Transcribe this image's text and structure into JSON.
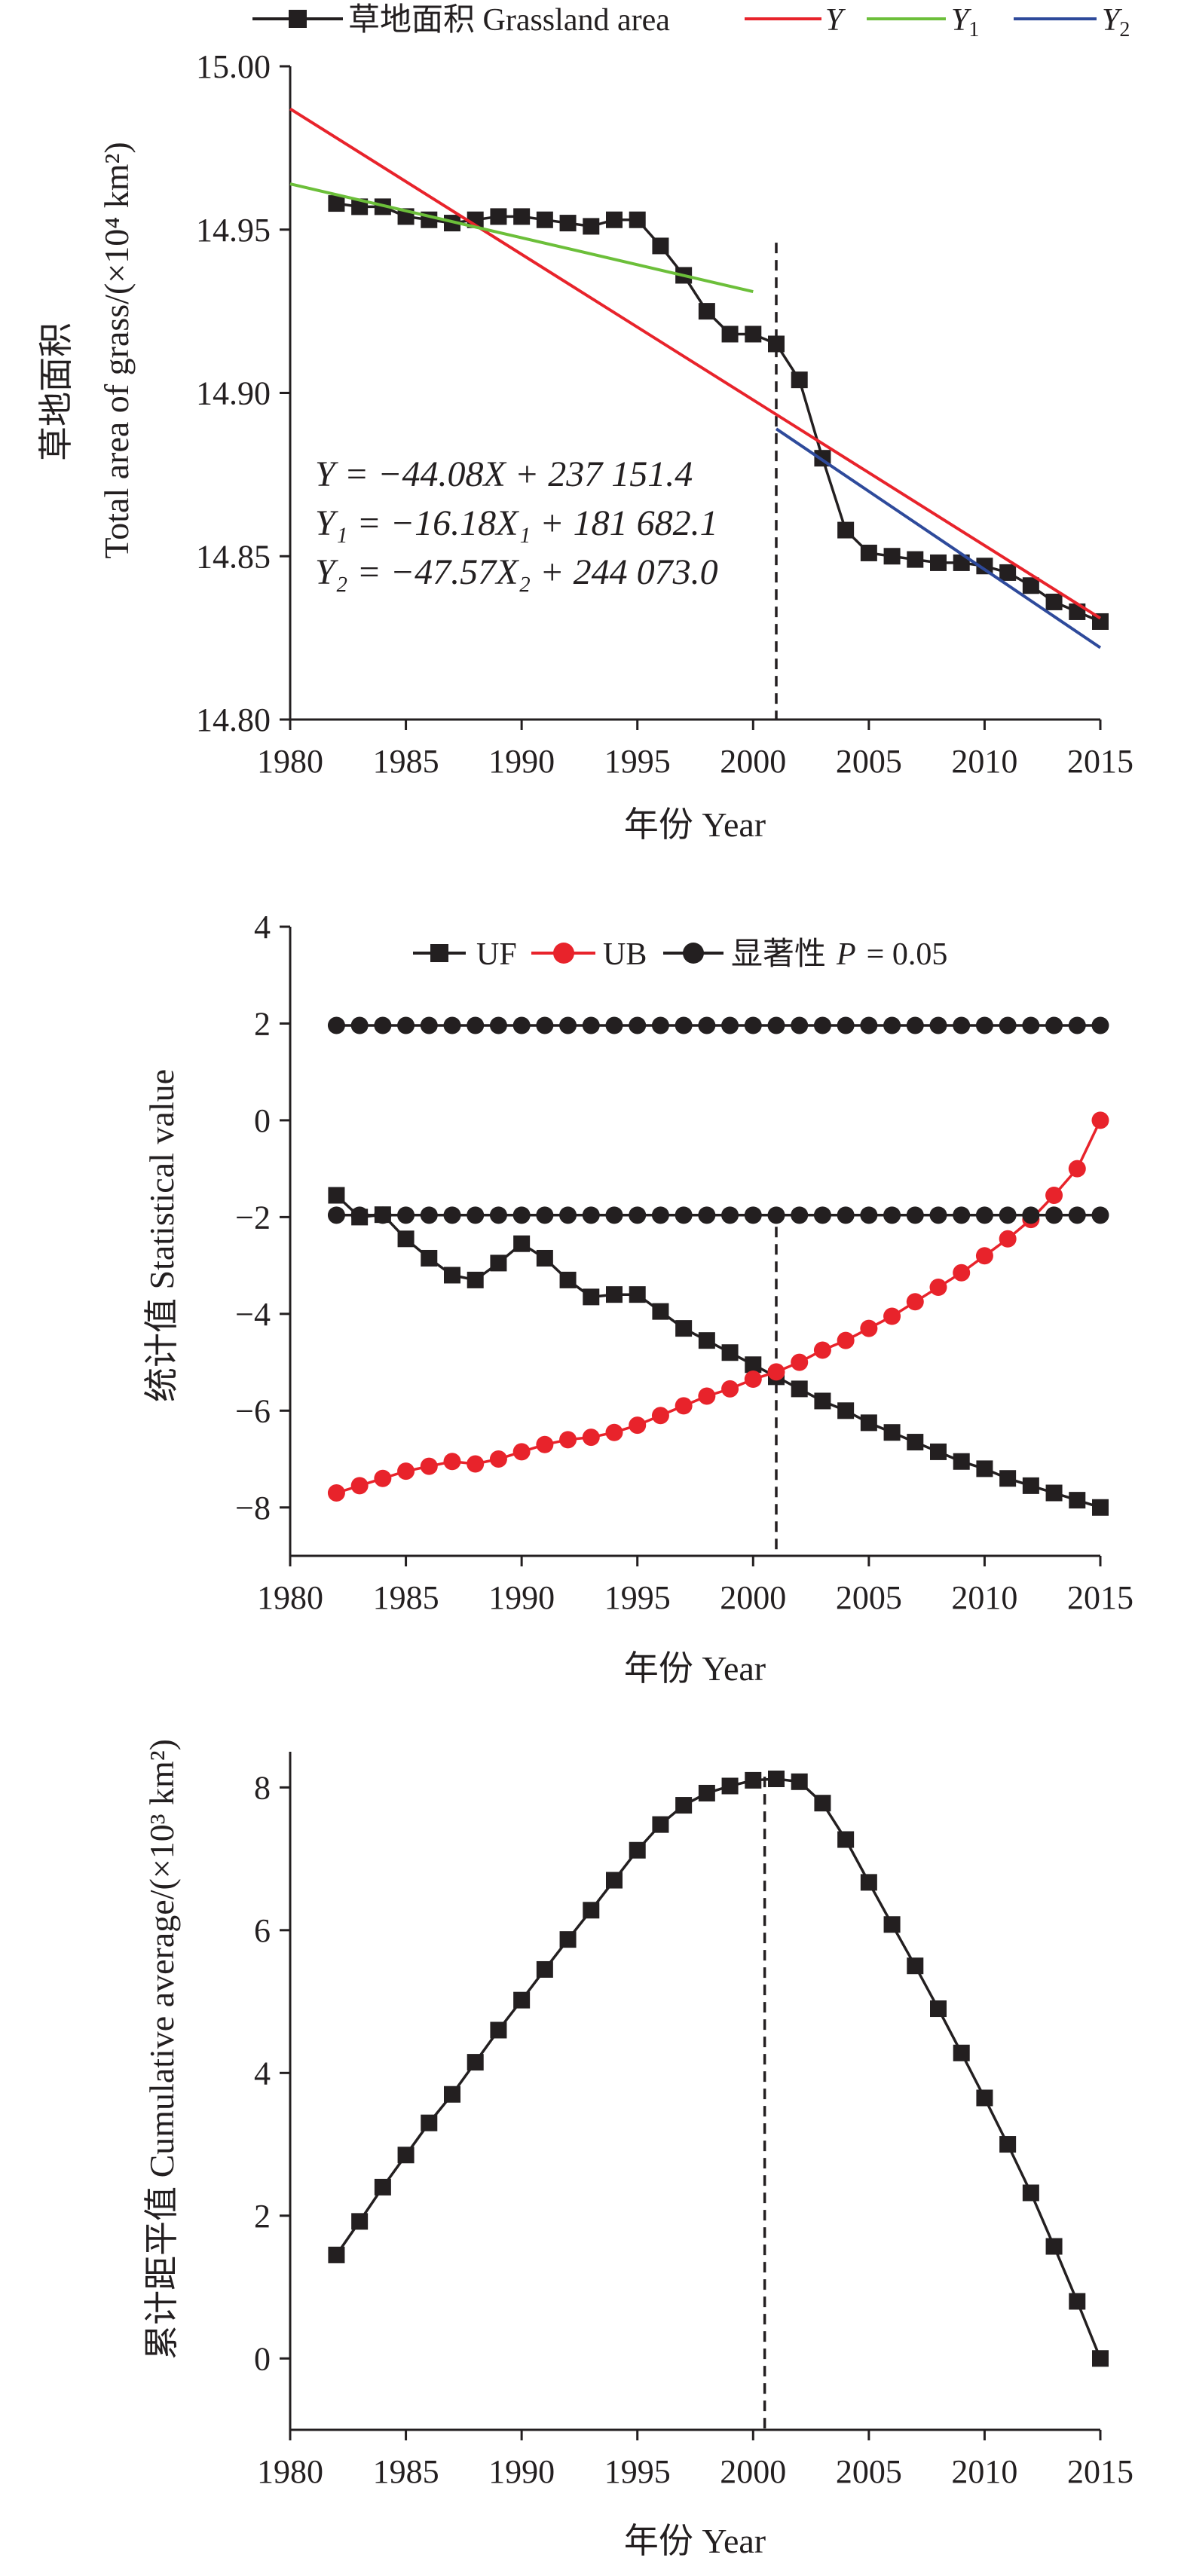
{
  "colors": {
    "black": "#231f20",
    "red": "#e8232b",
    "green": "#6cbf3a",
    "blue": "#2e4a9b"
  },
  "chart_data": [
    {
      "type": "line",
      "ylabel_cn": "草地面积",
      "ylabel_en": "Total area of grass/(×10⁴ km²)",
      "xlabel": "年份 Year",
      "xlim": [
        1980,
        2015
      ],
      "ylim": [
        14.8,
        15.0
      ],
      "xticks": [
        "1980",
        "1985",
        "1990",
        "1995",
        "2000",
        "2005",
        "2010",
        "2015"
      ],
      "yticks": [
        "14.80",
        "14.85",
        "14.90",
        "14.95",
        "15.00"
      ],
      "change_point": 2001,
      "legend": {
        "grass": "草地面积 Grassland area",
        "y": "Y",
        "y1": "Y",
        "y1_sub": "1",
        "y2": "Y",
        "y2_sub": "2"
      },
      "equations": {
        "eq_y": "Y = −44.08X + 237 151.4",
        "eq_y1": "Y₁ = −16.18X₁ + 181 682.1",
        "eq_y2": "Y₂ = −47.57X₂ + 244 073.0"
      },
      "series": [
        {
          "name": "草地面积 Grassland area",
          "color": "#231f20",
          "marker": "square",
          "x": [
            1982,
            1983,
            1984,
            1985,
            1986,
            1987,
            1988,
            1989,
            1990,
            1991,
            1992,
            1993,
            1994,
            1995,
            1996,
            1997,
            1998,
            1999,
            2000,
            2001,
            2002,
            2003,
            2004,
            2005,
            2006,
            2007,
            2008,
            2009,
            2010,
            2011,
            2012,
            2013,
            2014,
            2015
          ],
          "values": [
            14.958,
            14.957,
            14.957,
            14.954,
            14.953,
            14.952,
            14.953,
            14.954,
            14.954,
            14.953,
            14.952,
            14.951,
            14.953,
            14.953,
            14.945,
            14.936,
            14.925,
            14.918,
            14.918,
            14.915,
            14.904,
            14.88,
            14.858,
            14.851,
            14.85,
            14.849,
            14.848,
            14.848,
            14.847,
            14.845,
            14.841,
            14.836,
            14.833,
            14.83
          ]
        },
        {
          "name": "Y",
          "color": "#e8232b",
          "x": [
            1980,
            2015
          ],
          "values": [
            14.987,
            14.831
          ]
        },
        {
          "name": "Y1",
          "color": "#6cbf3a",
          "x": [
            1980,
            2000
          ],
          "values": [
            14.964,
            14.931
          ]
        },
        {
          "name": "Y2",
          "color": "#2e4a9b",
          "x": [
            2001,
            2015
          ],
          "values": [
            14.889,
            14.822
          ]
        }
      ]
    },
    {
      "type": "line",
      "ylabel": "统计值 Statistical value",
      "xlabel": "年份 Year",
      "xlim": [
        1980,
        2015
      ],
      "ylim": [
        -9,
        4
      ],
      "xticks": [
        "1980",
        "1985",
        "1990",
        "1995",
        "2000",
        "2005",
        "2010",
        "2015"
      ],
      "yticks": [
        "−8",
        "−6",
        "−4",
        "−2",
        "0",
        "2",
        "4"
      ],
      "change_point": 2001,
      "legend": {
        "uf": "UF",
        "ub": "UB",
        "sig": "显著性",
        "sig_p": "P",
        "sig_val": "= 0.05"
      },
      "series": [
        {
          "name": "UF",
          "color": "#231f20",
          "marker": "square",
          "x": [
            1982,
            1983,
            1984,
            1985,
            1986,
            1987,
            1988,
            1989,
            1990,
            1991,
            1992,
            1993,
            1994,
            1995,
            1996,
            1997,
            1998,
            1999,
            2000,
            2001,
            2002,
            2003,
            2004,
            2005,
            2006,
            2007,
            2008,
            2009,
            2010,
            2011,
            2012,
            2013,
            2014,
            2015
          ],
          "values": [
            -1.55,
            -2.0,
            -1.95,
            -2.45,
            -2.85,
            -3.2,
            -3.3,
            -2.95,
            -2.55,
            -2.85,
            -3.3,
            -3.65,
            -3.6,
            -3.6,
            -3.95,
            -4.3,
            -4.55,
            -4.8,
            -5.05,
            -5.3,
            -5.55,
            -5.8,
            -6.0,
            -6.25,
            -6.45,
            -6.65,
            -6.85,
            -7.05,
            -7.2,
            -7.4,
            -7.55,
            -7.7,
            -7.85,
            -8.0
          ]
        },
        {
          "name": "UB",
          "color": "#e8232b",
          "marker": "circle",
          "x": [
            1982,
            1983,
            1984,
            1985,
            1986,
            1987,
            1988,
            1989,
            1990,
            1991,
            1992,
            1993,
            1994,
            1995,
            1996,
            1997,
            1998,
            1999,
            2000,
            2001,
            2002,
            2003,
            2004,
            2005,
            2006,
            2007,
            2008,
            2009,
            2010,
            2011,
            2012,
            2013,
            2014,
            2015
          ],
          "values": [
            -7.7,
            -7.55,
            -7.4,
            -7.25,
            -7.15,
            -7.05,
            -7.1,
            -7.0,
            -6.85,
            -6.7,
            -6.6,
            -6.55,
            -6.45,
            -6.3,
            -6.1,
            -5.9,
            -5.7,
            -5.55,
            -5.35,
            -5.2,
            -5.0,
            -4.75,
            -4.55,
            -4.3,
            -4.05,
            -3.75,
            -3.45,
            -3.15,
            -2.8,
            -2.45,
            -2.05,
            -1.55,
            -1.0,
            0.0
          ]
        },
        {
          "name": "显著性 P = 0.05 (+)",
          "color": "#231f20",
          "marker": "circle",
          "x": [
            1982,
            1983,
            1984,
            1985,
            1986,
            1987,
            1988,
            1989,
            1990,
            1991,
            1992,
            1993,
            1994,
            1995,
            1996,
            1997,
            1998,
            1999,
            2000,
            2001,
            2002,
            2003,
            2004,
            2005,
            2006,
            2007,
            2008,
            2009,
            2010,
            2011,
            2012,
            2013,
            2014,
            2015
          ],
          "values": [
            1.96,
            1.96,
            1.96,
            1.96,
            1.96,
            1.96,
            1.96,
            1.96,
            1.96,
            1.96,
            1.96,
            1.96,
            1.96,
            1.96,
            1.96,
            1.96,
            1.96,
            1.96,
            1.96,
            1.96,
            1.96,
            1.96,
            1.96,
            1.96,
            1.96,
            1.96,
            1.96,
            1.96,
            1.96,
            1.96,
            1.96,
            1.96,
            1.96,
            1.96
          ]
        },
        {
          "name": "显著性 P = 0.05 (−)",
          "color": "#231f20",
          "marker": "circle",
          "x": [
            1982,
            1983,
            1984,
            1985,
            1986,
            1987,
            1988,
            1989,
            1990,
            1991,
            1992,
            1993,
            1994,
            1995,
            1996,
            1997,
            1998,
            1999,
            2000,
            2001,
            2002,
            2003,
            2004,
            2005,
            2006,
            2007,
            2008,
            2009,
            2010,
            2011,
            2012,
            2013,
            2014,
            2015
          ],
          "values": [
            -1.96,
            -1.96,
            -1.96,
            -1.96,
            -1.96,
            -1.96,
            -1.96,
            -1.96,
            -1.96,
            -1.96,
            -1.96,
            -1.96,
            -1.96,
            -1.96,
            -1.96,
            -1.96,
            -1.96,
            -1.96,
            -1.96,
            -1.96,
            -1.96,
            -1.96,
            -1.96,
            -1.96,
            -1.96,
            -1.96,
            -1.96,
            -1.96,
            -1.96,
            -1.96,
            -1.96,
            -1.96,
            -1.96,
            -1.96
          ]
        }
      ]
    },
    {
      "type": "line",
      "ylabel": "累计距平值 Cumulative average/(×10³ km²)",
      "xlabel": "年份 Year",
      "xlim": [
        1980,
        2015
      ],
      "ylim": [
        -1,
        8.5
      ],
      "xticks": [
        "1980",
        "1985",
        "1990",
        "1995",
        "2000",
        "2005",
        "2010",
        "2015"
      ],
      "yticks": [
        "0",
        "2",
        "4",
        "6",
        "8"
      ],
      "change_point": 2000.5,
      "series": [
        {
          "name": "Cumulative average",
          "color": "#231f20",
          "marker": "square",
          "x": [
            1982,
            1983,
            1984,
            1985,
            1986,
            1987,
            1988,
            1989,
            1990,
            1991,
            1992,
            1993,
            1994,
            1995,
            1996,
            1997,
            1998,
            1999,
            2000,
            2001,
            2002,
            2003,
            2004,
            2005,
            2006,
            2007,
            2008,
            2009,
            2010,
            2011,
            2012,
            2013,
            2014,
            2015
          ],
          "values": [
            1.45,
            1.92,
            2.4,
            2.85,
            3.3,
            3.7,
            4.15,
            4.6,
            5.02,
            5.45,
            5.87,
            6.28,
            6.7,
            7.12,
            7.48,
            7.75,
            7.92,
            8.02,
            8.1,
            8.12,
            8.08,
            7.78,
            7.27,
            6.67,
            6.08,
            5.5,
            4.9,
            4.28,
            3.65,
            3.0,
            2.32,
            1.57,
            0.8,
            0.0
          ]
        }
      ]
    }
  ]
}
